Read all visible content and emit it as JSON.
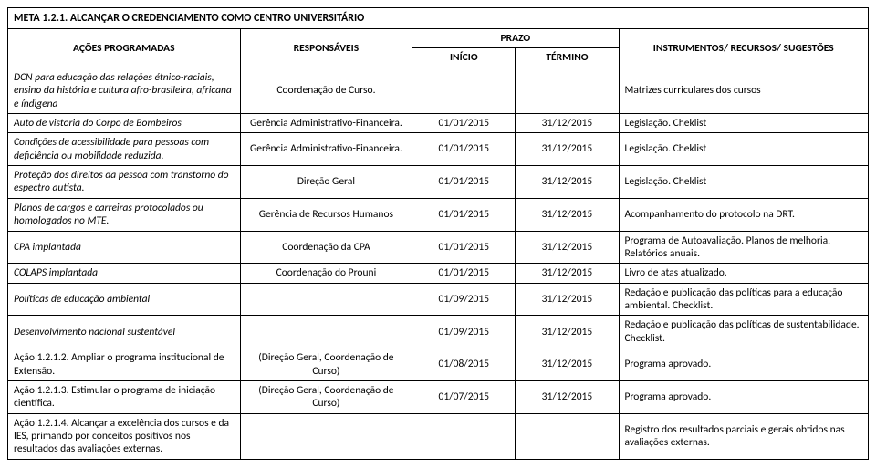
{
  "meta_title": "META 1.2.1. ALCANÇAR O CREDENCIAMENTO COMO CENTRO UNIVERSITÁRIO",
  "headers": {
    "acoes": "AÇÕES PROGRAMADAS",
    "responsaveis": "RESPONSÁVEIS",
    "prazo": "PRAZO",
    "inicio": "INÍCIO",
    "termino": "TÉRMINO",
    "instrumentos": "INSTRUMENTOS/ RECURSOS/ SUGESTÕES"
  },
  "rows": [
    {
      "acao": "DCN para educação das relações étnico-raciais, ensino da história e    cultura afro-brasileira, africana e índigena",
      "resp": "Coordenação de Curso.",
      "inicio": "",
      "termino": "",
      "instr": "Matrizes curriculares dos cursos",
      "italic": true
    },
    {
      "acao": "Auto de vistoria do Corpo de Bombeiros",
      "resp": "Gerência Administrativo-Financeira.",
      "inicio": "01/01/2015",
      "termino": "31/12/2015",
      "instr": "Legislação. Cheklist",
      "italic": true
    },
    {
      "acao": "Condições de acessibilidade para pessoas com deficiência ou mobilidade reduzida.",
      "resp": "Gerência Administrativo-Financeira.",
      "inicio": "01/01/2015",
      "termino": "31/12/2015",
      "instr": "Legislação. Cheklist",
      "italic": true
    },
    {
      "acao": "Proteção dos direitos da pessoa com transtorno do espectro autista.",
      "resp": "Direção Geral",
      "inicio": "01/01/2015",
      "termino": "31/12/2015",
      "instr": "Legislação. Cheklist",
      "italic": true
    },
    {
      "acao": "Planos de cargos e carreiras protocolados ou homologados no MTE.",
      "resp": "Gerência de Recursos Humanos",
      "inicio": "01/01/2015",
      "termino": "31/12/2015",
      "instr": "Acompanhamento do protocolo na DRT.",
      "italic": true
    },
    {
      "acao": "CPA implantada",
      "resp": "Coordenação da CPA",
      "inicio": "01/01/2015",
      "termino": "31/12/2015",
      "instr": "Programa de Autoavaliação. Planos de melhoria. Relatórios anuais.",
      "italic": true
    },
    {
      "acao": "COLAPS implantada",
      "resp": "Coordenação do Prouni",
      "inicio": "01/01/2015",
      "termino": "31/12/2015",
      "instr": "Livro de atas atualizado.",
      "italic": true
    },
    {
      "acao": "Políticas de educação ambiental",
      "resp": "",
      "inicio": "01/09/2015",
      "termino": "31/12/2015",
      "instr": "Redação e publicação das políticas para a educação ambiental. Checklist.",
      "italic": true
    },
    {
      "acao": "Desenvolvimento nacional sustentável",
      "resp": "",
      "inicio": "01/09/2015",
      "termino": "31/12/2015",
      "instr": "Redação e publicação das políticas de sustentabilidade. Checklist.",
      "italic": true
    },
    {
      "acao": "Ação 1.2.1.2. Ampliar o programa institucional de Extensão.",
      "resp": "(Direção Geral, Coordenação de Curso)",
      "inicio": "01/08/2015",
      "termino": "31/12/2015",
      "instr": "Programa aprovado.",
      "italic": false
    },
    {
      "acao": "Ação 1.2.1.3. Estimular o programa de iniciação científica.",
      "resp": "(Direção Geral, Coordenação de Curso)",
      "inicio": "01/07/2015",
      "termino": "31/12/2015",
      "instr": "Programa aprovado.",
      "italic": false
    },
    {
      "acao": "Ação 1.2.1.4. Alcançar a excelência dos cursos e da IES, primando por conceitos positivos nos resultados das avaliações externas.",
      "resp": "",
      "inicio": "",
      "termino": "",
      "instr": "Registro dos resultados parciais e gerais obtidos nas avaliações externas.",
      "italic": false
    }
  ]
}
